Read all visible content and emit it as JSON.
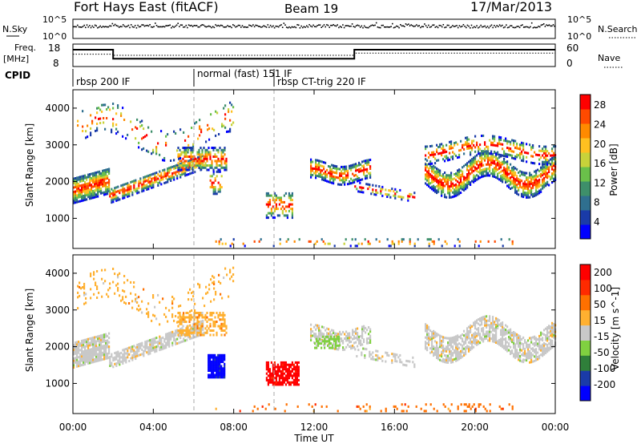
{
  "header": {
    "station": "Fort Hays East (fitACF)",
    "beam": "Beam 19",
    "date": "17/Mar/2013"
  },
  "chart_data": [
    {
      "type": "line",
      "panel": "noise",
      "left_label": "N.Sky",
      "right_label": "N.Search",
      "left_ticks": [
        "10^5",
        "10^0"
      ],
      "right_ticks": [
        "10^5",
        "10^0"
      ],
      "scale": "log"
    },
    {
      "type": "line",
      "panel": "frequency",
      "left_label_line1": "Freq.",
      "left_label_line2": "[MHz]",
      "right_label": "Nave",
      "left_ticks": [
        18,
        8
      ],
      "right_ticks": [
        60,
        0
      ],
      "ylim": [
        8,
        18
      ],
      "series": [
        {
          "x": [
            0,
            2,
            2,
            14,
            14,
            24
          ],
          "values": [
            15.5,
            15.5,
            11.5,
            11.5,
            15.5,
            15.5
          ],
          "style": "solid"
        },
        {
          "x": [
            0,
            2,
            2,
            14,
            14,
            24
          ],
          "values": [
            13.5,
            13.5,
            13,
            13,
            14,
            14
          ],
          "style": "dotted"
        }
      ]
    },
    {
      "type": "table",
      "panel": "cpid",
      "label": "CPID",
      "segments": [
        {
          "start": 0,
          "text": "rbsp 200 IF"
        },
        {
          "start": 6,
          "text": "normal (fast) 151 IF"
        },
        {
          "start": 10,
          "text": "rbsp CT-trig 220 IF"
        }
      ]
    },
    {
      "type": "heatmap",
      "panel": "power",
      "title": "Power [dB]",
      "ylabel": "Slant Range [km]",
      "yticks": [
        1000,
        2000,
        3000,
        4000
      ],
      "ylim": [
        180,
        4500
      ],
      "colorbar_ticks": [
        4,
        8,
        12,
        16,
        20,
        24,
        28
      ],
      "colorbar_range": [
        0,
        30
      ],
      "colors": [
        "#0000ff",
        "#1a3ba8",
        "#2f6f8f",
        "#3e8f6a",
        "#6ac04a",
        "#c8d23a",
        "#ffc020",
        "#ff8a00",
        "#ff4a00",
        "#ff0000"
      ]
    },
    {
      "type": "heatmap",
      "panel": "velocity",
      "title": "Velocity [m s^-1]",
      "ylabel": "Slant Range [km]",
      "yticks": [
        1000,
        2000,
        3000,
        4000
      ],
      "ylim": [
        180,
        4500
      ],
      "colorbar_ticks": [
        200,
        100,
        50,
        15,
        -15,
        -50,
        -100,
        -200
      ],
      "colors": [
        "#0000ff",
        "#1a3ba8",
        "#2f7f3a",
        "#80d040",
        "#c8c8c8",
        "#ffb030",
        "#ff7000",
        "#ff2a00",
        "#ff0000"
      ]
    }
  ],
  "x_axis": {
    "label": "Time UT",
    "ticks": [
      "00:00",
      "04:00",
      "08:00",
      "12:00",
      "16:00",
      "20:00",
      "00:00"
    ],
    "xlim": [
      0,
      24
    ]
  }
}
